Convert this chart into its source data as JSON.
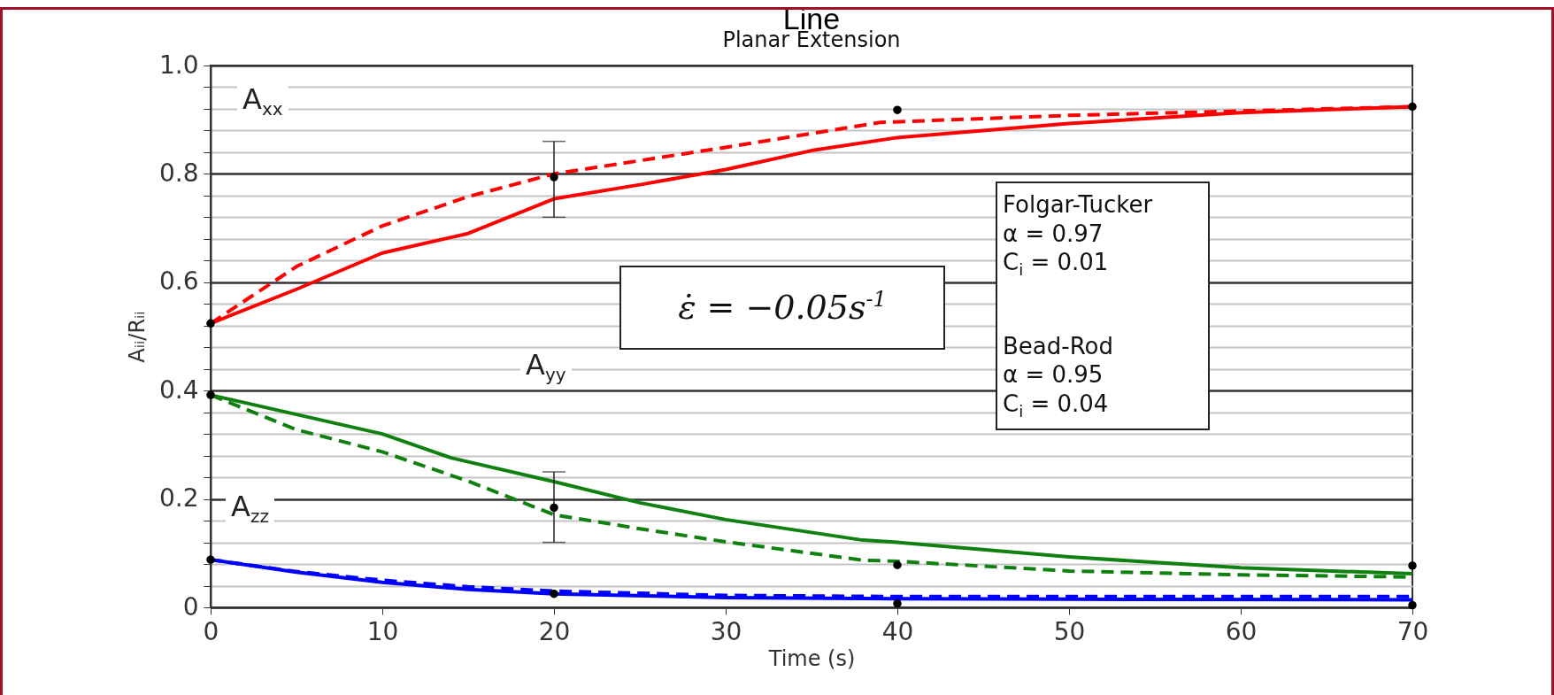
{
  "chart_data": {
    "type": "line",
    "title": "Line",
    "subtitle": "Planar Extension",
    "xlabel": "Time (s)",
    "ylabel": "Aᵢᵢ/Rᵢᵢ",
    "xlim": [
      0,
      70
    ],
    "xticks": [
      0,
      10,
      20,
      30,
      40,
      50,
      60,
      70
    ],
    "ylim": [
      0,
      1
    ],
    "yticks": [
      {
        "value": 0,
        "label": "0"
      },
      {
        "value": 0.04,
        "label": null
      },
      {
        "value": 0.08,
        "label": null
      },
      {
        "value": 0.12,
        "label": null
      },
      {
        "value": 0.16,
        "label": null
      },
      0.2,
      {
        "value": 0.24,
        "label": null
      },
      {
        "value": 0.28,
        "label": null
      },
      {
        "value": 0.32,
        "label": null
      },
      {
        "value": 0.36,
        "label": null
      },
      0.4,
      {
        "value": 0.44,
        "label": null
      },
      {
        "value": 0.48,
        "label": null
      },
      {
        "value": 0.52,
        "label": null
      },
      {
        "value": 0.56,
        "label": null
      },
      0.6,
      {
        "value": 0.64,
        "label": null
      },
      {
        "value": 0.68,
        "label": null
      },
      {
        "value": 0.72,
        "label": null
      },
      {
        "value": 0.76,
        "label": null
      },
      0.8,
      {
        "value": 0.84,
        "label": null
      },
      {
        "value": 0.88,
        "label": null
      },
      {
        "value": 0.92,
        "label": null
      },
      {
        "value": 0.96,
        "label": null
      },
      {
        "value": 1,
        "label": "1.0"
      }
    ],
    "grid": "y",
    "legend": false,
    "series": [
      {
        "type": "line",
        "color": "#ff0000",
        "line_style": "solid",
        "x": [
          0,
          5,
          10,
          15,
          20,
          25,
          30,
          35,
          40,
          50,
          60,
          70
        ],
        "values": [
          0.524,
          0.587,
          0.654,
          0.69,
          0.754,
          0.78,
          0.808,
          0.843,
          0.867,
          0.893,
          0.913,
          0.924
        ]
      },
      {
        "type": "line",
        "color": "#ff0000",
        "line_style": "dashed",
        "x": [
          0,
          5,
          10,
          15,
          20,
          30,
          39,
          50,
          60,
          70
        ],
        "values": [
          0.524,
          0.629,
          0.704,
          0.758,
          0.8,
          0.849,
          0.895,
          0.908,
          0.916,
          0.924
        ]
      },
      {
        "type": "line",
        "color": "#108010",
        "line_style": "solid",
        "x": [
          0,
          10,
          14,
          20,
          25,
          30,
          38,
          40,
          50,
          60,
          70
        ],
        "values": [
          0.392,
          0.32,
          0.276,
          0.232,
          0.193,
          0.162,
          0.124,
          0.12,
          0.093,
          0.073,
          0.062
        ]
      },
      {
        "type": "line",
        "color": "#108010",
        "line_style": "dashed",
        "x": [
          0,
          5,
          10,
          15,
          20,
          25,
          30,
          38,
          40,
          50,
          60,
          70
        ],
        "values": [
          0.392,
          0.328,
          0.287,
          0.233,
          0.171,
          0.145,
          0.121,
          0.087,
          0.085,
          0.067,
          0.06,
          0.056
        ]
      },
      {
        "type": "line",
        "color": "#0000ff",
        "line_style": "solid",
        "x": [
          0,
          5,
          10,
          15,
          20,
          30,
          40,
          50,
          70
        ],
        "values": [
          0.088,
          0.065,
          0.046,
          0.033,
          0.025,
          0.018,
          0.016,
          0.015,
          0.014
        ]
      },
      {
        "type": "line",
        "color": "#0000ff",
        "line_style": "dashed",
        "x": [
          0,
          5,
          10,
          15,
          20,
          30,
          40,
          70
        ],
        "values": [
          0.088,
          0.066,
          0.05,
          0.038,
          0.03,
          0.022,
          0.02,
          0.02
        ]
      },
      {
        "type": "scatter",
        "color": "#000000",
        "marker": "circle",
        "x": [
          0,
          20,
          40,
          70
        ],
        "values": [
          0.524,
          0.794,
          0.918,
          0.924
        ],
        "errors": [
          null,
          [
            0.72,
            0.86
          ],
          null,
          null
        ]
      },
      {
        "type": "scatter",
        "color": "#000000",
        "marker": "circle",
        "x": [
          0,
          20,
          40,
          70
        ],
        "values": [
          0.392,
          0.184,
          0.078,
          0.077
        ],
        "errors": [
          null,
          [
            0.12,
            0.25
          ],
          null,
          null
        ]
      },
      {
        "type": "scatter",
        "color": "#000000",
        "marker": "circle",
        "x": [
          0,
          20,
          40,
          70
        ],
        "values": [
          0.088,
          0.025,
          0.007,
          0.004
        ]
      }
    ],
    "annotations": [
      "A$_{xx}$",
      "A$_{yy}$",
      "A$_{zz}$",
      "ε̇ = −0.05s$^{-1}$",
      "Folgar-Tucker",
      "α = 0.97",
      "C$_{i}$ = 0.01",
      "Bead-Rod",
      "α = 0.95",
      "C$_{i}$ = 0.04"
    ]
  }
}
